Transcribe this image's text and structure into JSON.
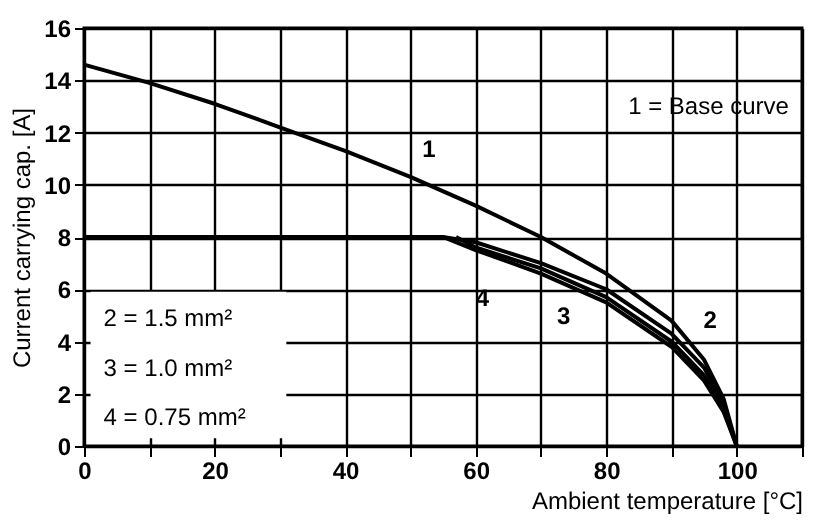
{
  "chart_data": {
    "type": "line",
    "xlabel": "Ambient temperature [°C]",
    "ylabel": "Current carrying cap. [A]",
    "xlim": [
      0,
      110
    ],
    "ylim": [
      0,
      16
    ],
    "xticks": [
      0,
      {
        "value": 10,
        "label": null
      },
      20,
      {
        "value": 30,
        "label": null
      },
      40,
      {
        "value": 50,
        "label": null
      },
      60,
      {
        "value": 70,
        "label": null
      },
      80,
      {
        "value": 90,
        "label": null
      },
      100,
      {
        "value": 110,
        "label": null
      }
    ],
    "yticks": [
      0,
      2,
      4,
      6,
      8,
      10,
      12,
      14,
      16
    ],
    "grid": true,
    "legend": false,
    "marker": "none",
    "line_style": "solid",
    "series": [
      {
        "name": "1",
        "color": "#000000",
        "x": [
          0,
          10,
          20,
          30,
          40,
          50,
          60,
          70,
          80,
          90,
          95,
          98,
          100
        ],
        "values": [
          14.6,
          13.9,
          13.1,
          12.2,
          11.3,
          10.3,
          9.2,
          8.0,
          6.6,
          4.8,
          3.3,
          1.8,
          0
        ]
      },
      {
        "name": "2",
        "color": "#000000",
        "x": [
          0,
          55,
          60,
          70,
          80,
          90,
          95,
          98,
          100
        ],
        "values": [
          8,
          8,
          7.8,
          7.0,
          6.0,
          4.3,
          3.0,
          1.6,
          0
        ]
      },
      {
        "name": "3",
        "color": "#000000",
        "x": [
          57,
          60,
          70,
          80,
          90,
          95,
          98,
          100
        ],
        "values": [
          8,
          7.6,
          6.8,
          5.7,
          4.0,
          2.7,
          1.4,
          0
        ]
      },
      {
        "name": "4",
        "color": "#000000",
        "x": [
          55,
          60,
          70,
          80,
          90,
          95,
          98,
          100
        ],
        "values": [
          8,
          7.5,
          6.6,
          5.5,
          3.8,
          2.5,
          1.3,
          0
        ]
      }
    ],
    "annotations": [
      "1 = Base curve",
      "2 = 1.5 mm²",
      "3 = 1.0 mm²",
      "4 = 0.75 mm²"
    ]
  }
}
